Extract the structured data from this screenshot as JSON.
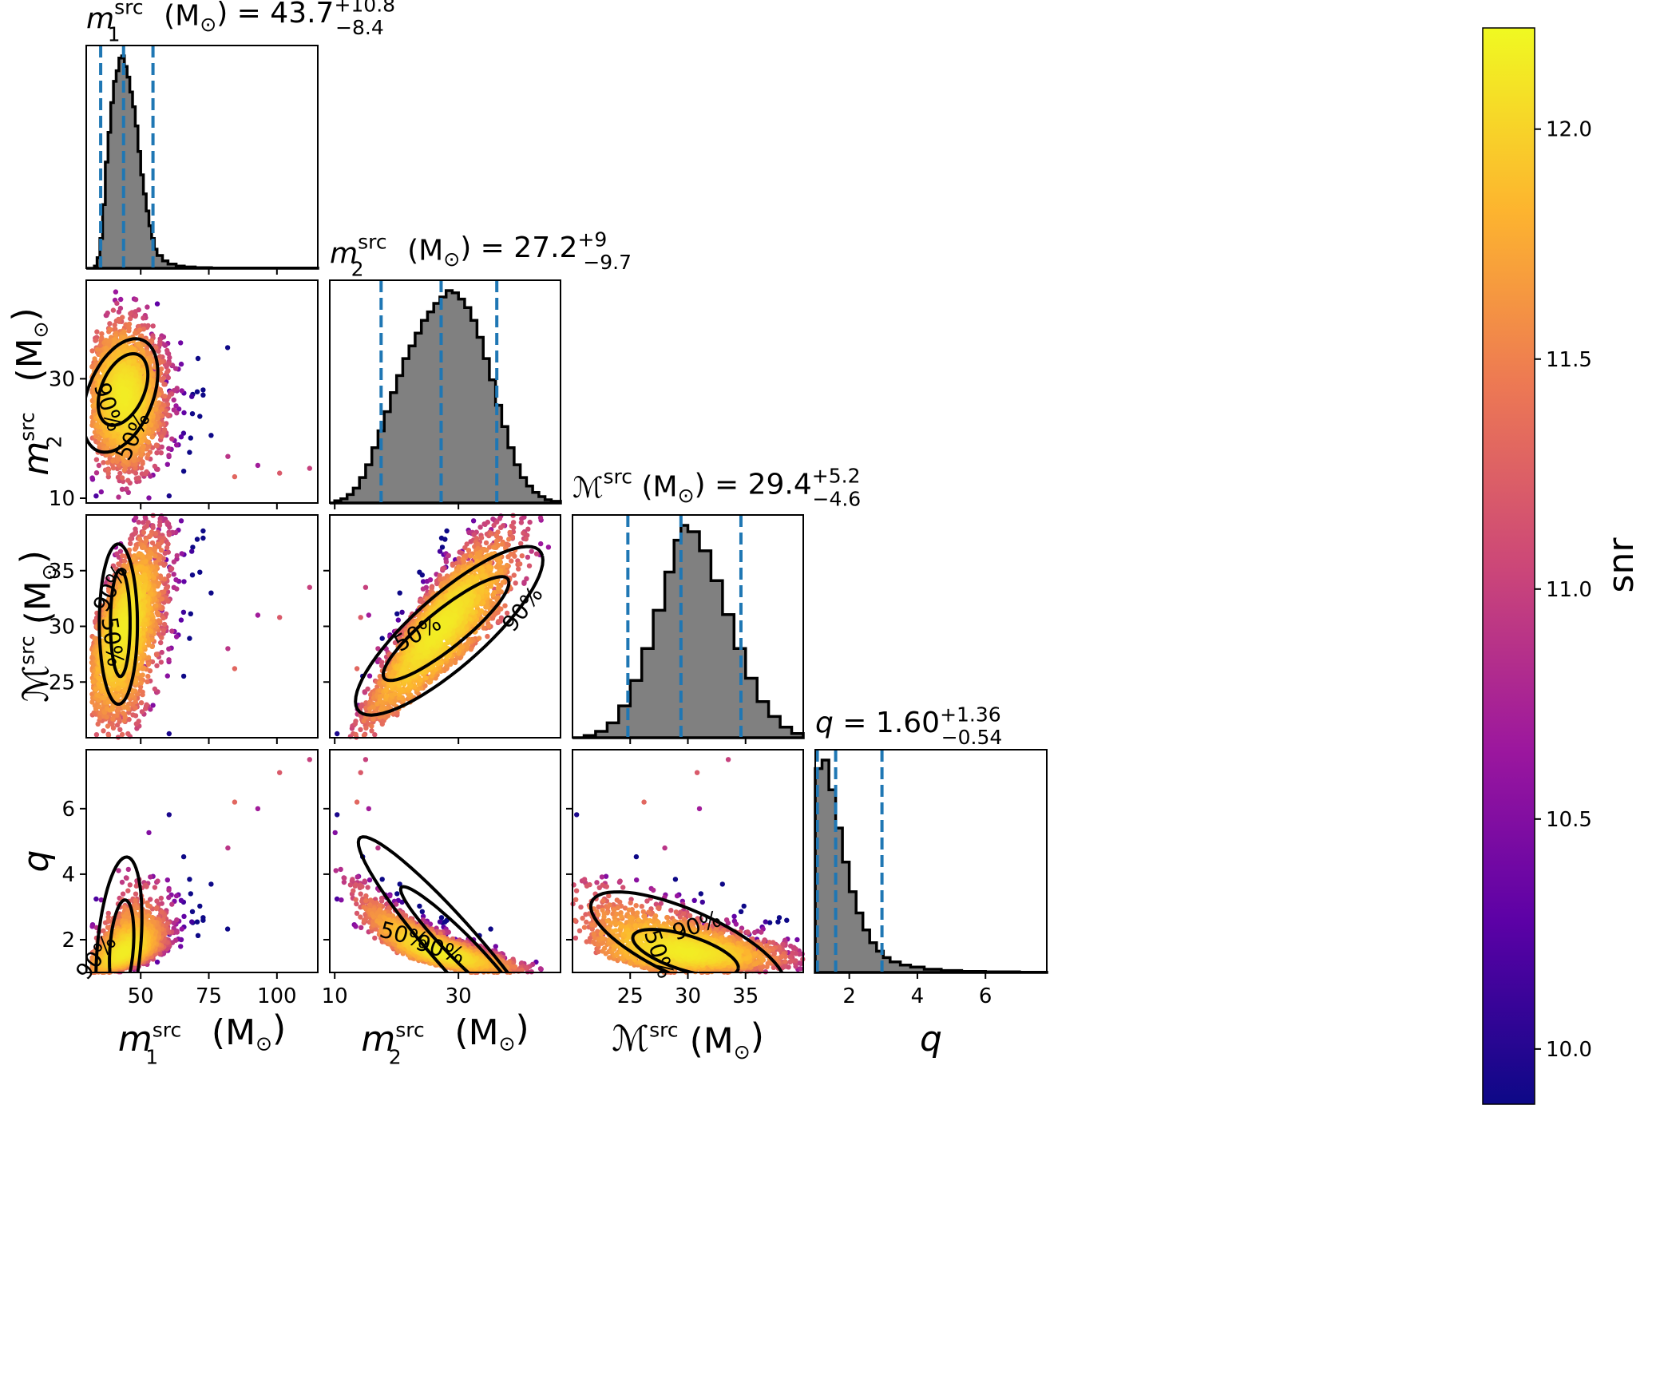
{
  "chart_data": {
    "type": "corner",
    "parameters": [
      {
        "key": "m1",
        "symbol": "m",
        "sub": "1",
        "sup": "src",
        "unit": "(M",
        "unit_sub": "⊙",
        "unit_close": ")",
        "title_value": "43.7",
        "title_plus": "+10.8",
        "title_minus": "−8.4",
        "median": 43.7,
        "lower": 35.3,
        "upper": 54.5,
        "range": [
          30,
          115
        ],
        "ticks": [
          50,
          75,
          100
        ]
      },
      {
        "key": "m2",
        "symbol": "m",
        "sub": "2",
        "sup": "src",
        "unit": "(M",
        "unit_sub": "⊙",
        "unit_close": ")",
        "title_value": "27.2",
        "title_plus": "+9",
        "title_minus": "−9.7",
        "median": 27.2,
        "lower": 17.5,
        "upper": 36.2,
        "range": [
          9.2,
          46.5
        ],
        "ticks": [
          10,
          30
        ]
      },
      {
        "key": "mc",
        "symbol": "ℳ",
        "sub": "",
        "sup": "src",
        "unit": "(M",
        "unit_sub": "⊙",
        "unit_close": ")",
        "title_value": "29.4",
        "title_plus": "+5.2",
        "title_minus": "−4.6",
        "median": 29.4,
        "lower": 24.8,
        "upper": 34.6,
        "range": [
          20,
          40
        ],
        "ticks": [
          25,
          30,
          35
        ]
      },
      {
        "key": "q",
        "symbol": "q",
        "sub": "",
        "sup": "",
        "unit": "",
        "unit_sub": "",
        "unit_close": "",
        "title_value": "1.60",
        "title_plus": "+1.36",
        "title_minus": "−0.54",
        "median": 1.6,
        "lower": 1.06,
        "upper": 2.96,
        "range": [
          1,
          7.8
        ],
        "ticks": [
          2,
          4,
          6
        ]
      }
    ],
    "histograms": {
      "m1": [
        [
          30,
          0
        ],
        [
          31.5,
          0
        ],
        [
          33,
          0.01
        ],
        [
          34,
          0.05
        ],
        [
          35,
          0.14
        ],
        [
          36,
          0.3
        ],
        [
          37,
          0.5
        ],
        [
          38,
          0.64
        ],
        [
          39,
          0.78
        ],
        [
          40,
          0.88
        ],
        [
          41,
          0.93
        ],
        [
          42,
          0.99
        ],
        [
          43,
          1.0
        ],
        [
          44,
          0.95
        ],
        [
          45,
          0.9
        ],
        [
          46,
          0.83
        ],
        [
          47,
          0.76
        ],
        [
          48,
          0.67
        ],
        [
          49,
          0.55
        ],
        [
          50,
          0.44
        ],
        [
          51,
          0.35
        ],
        [
          52,
          0.27
        ],
        [
          53,
          0.2
        ],
        [
          54,
          0.14
        ],
        [
          55,
          0.09
        ],
        [
          56,
          0.06
        ],
        [
          58,
          0.035
        ],
        [
          60,
          0.02
        ],
        [
          63,
          0.01
        ],
        [
          66,
          0.006
        ],
        [
          70,
          0.003
        ],
        [
          76,
          0.001
        ],
        [
          115,
          0
        ]
      ],
      "m2": [
        [
          9.2,
          0
        ],
        [
          10,
          0.01
        ],
        [
          11,
          0.02
        ],
        [
          12,
          0.04
        ],
        [
          13,
          0.07
        ],
        [
          14,
          0.12
        ],
        [
          15,
          0.18
        ],
        [
          16,
          0.26
        ],
        [
          17,
          0.34
        ],
        [
          18,
          0.43
        ],
        [
          19,
          0.52
        ],
        [
          20,
          0.6
        ],
        [
          21,
          0.68
        ],
        [
          22,
          0.74
        ],
        [
          23,
          0.8
        ],
        [
          24,
          0.86
        ],
        [
          25,
          0.9
        ],
        [
          26,
          0.94
        ],
        [
          27,
          0.97
        ],
        [
          28,
          1.0
        ],
        [
          29,
          0.99
        ],
        [
          30,
          0.96
        ],
        [
          31,
          0.92
        ],
        [
          32,
          0.86
        ],
        [
          33,
          0.78
        ],
        [
          34,
          0.68
        ],
        [
          35,
          0.58
        ],
        [
          36,
          0.46
        ],
        [
          37,
          0.36
        ],
        [
          38,
          0.26
        ],
        [
          39,
          0.18
        ],
        [
          40,
          0.12
        ],
        [
          41,
          0.08
        ],
        [
          42,
          0.05
        ],
        [
          43,
          0.03
        ],
        [
          44,
          0.015
        ],
        [
          45,
          0.008
        ],
        [
          46.5,
          0
        ]
      ],
      "mc": [
        [
          20,
          0
        ],
        [
          21,
          0.01
        ],
        [
          22,
          0.03
        ],
        [
          23,
          0.07
        ],
        [
          24,
          0.15
        ],
        [
          25,
          0.27
        ],
        [
          26,
          0.42
        ],
        [
          27,
          0.6
        ],
        [
          28,
          0.78
        ],
        [
          28.8,
          0.93
        ],
        [
          29.4,
          1.0
        ],
        [
          30,
          0.97
        ],
        [
          31,
          0.88
        ],
        [
          32,
          0.74
        ],
        [
          33,
          0.58
        ],
        [
          34,
          0.42
        ],
        [
          35,
          0.28
        ],
        [
          36,
          0.17
        ],
        [
          37,
          0.1
        ],
        [
          38,
          0.05
        ],
        [
          39,
          0.02
        ],
        [
          40,
          0.005
        ]
      ],
      "q": [
        [
          1,
          0.96
        ],
        [
          1.2,
          1.0
        ],
        [
          1.4,
          0.86
        ],
        [
          1.6,
          0.68
        ],
        [
          1.8,
          0.52
        ],
        [
          2,
          0.38
        ],
        [
          2.2,
          0.28
        ],
        [
          2.4,
          0.2
        ],
        [
          2.6,
          0.14
        ],
        [
          2.8,
          0.1
        ],
        [
          3,
          0.07
        ],
        [
          3.2,
          0.05
        ],
        [
          3.5,
          0.035
        ],
        [
          3.8,
          0.025
        ],
        [
          4.2,
          0.015
        ],
        [
          4.7,
          0.009
        ],
        [
          5.3,
          0.005
        ],
        [
          6,
          0.003
        ],
        [
          7,
          0.001
        ],
        [
          7.8,
          0
        ]
      ]
    },
    "contour_levels": [
      "50%",
      "90%"
    ],
    "scatter_color": "snr",
    "colorbar": {
      "label": "snr",
      "range": [
        9.88,
        12.22
      ],
      "ticks": [
        "10.0",
        "10.5",
        "11.0",
        "11.5",
        "12.0"
      ],
      "tick_values": [
        10.0,
        10.5,
        11.0,
        11.5,
        12.0
      ],
      "colormap": "plasma",
      "colors": [
        "#0d0887",
        "#5c01a6",
        "#9c179e",
        "#cc4778",
        "#ed7953",
        "#fdb42f",
        "#f0f921"
      ]
    },
    "style": {
      "histogram_fill": "#808080",
      "histogram_edge": "#000000",
      "quantile_line_color": "#1f77b4"
    }
  }
}
